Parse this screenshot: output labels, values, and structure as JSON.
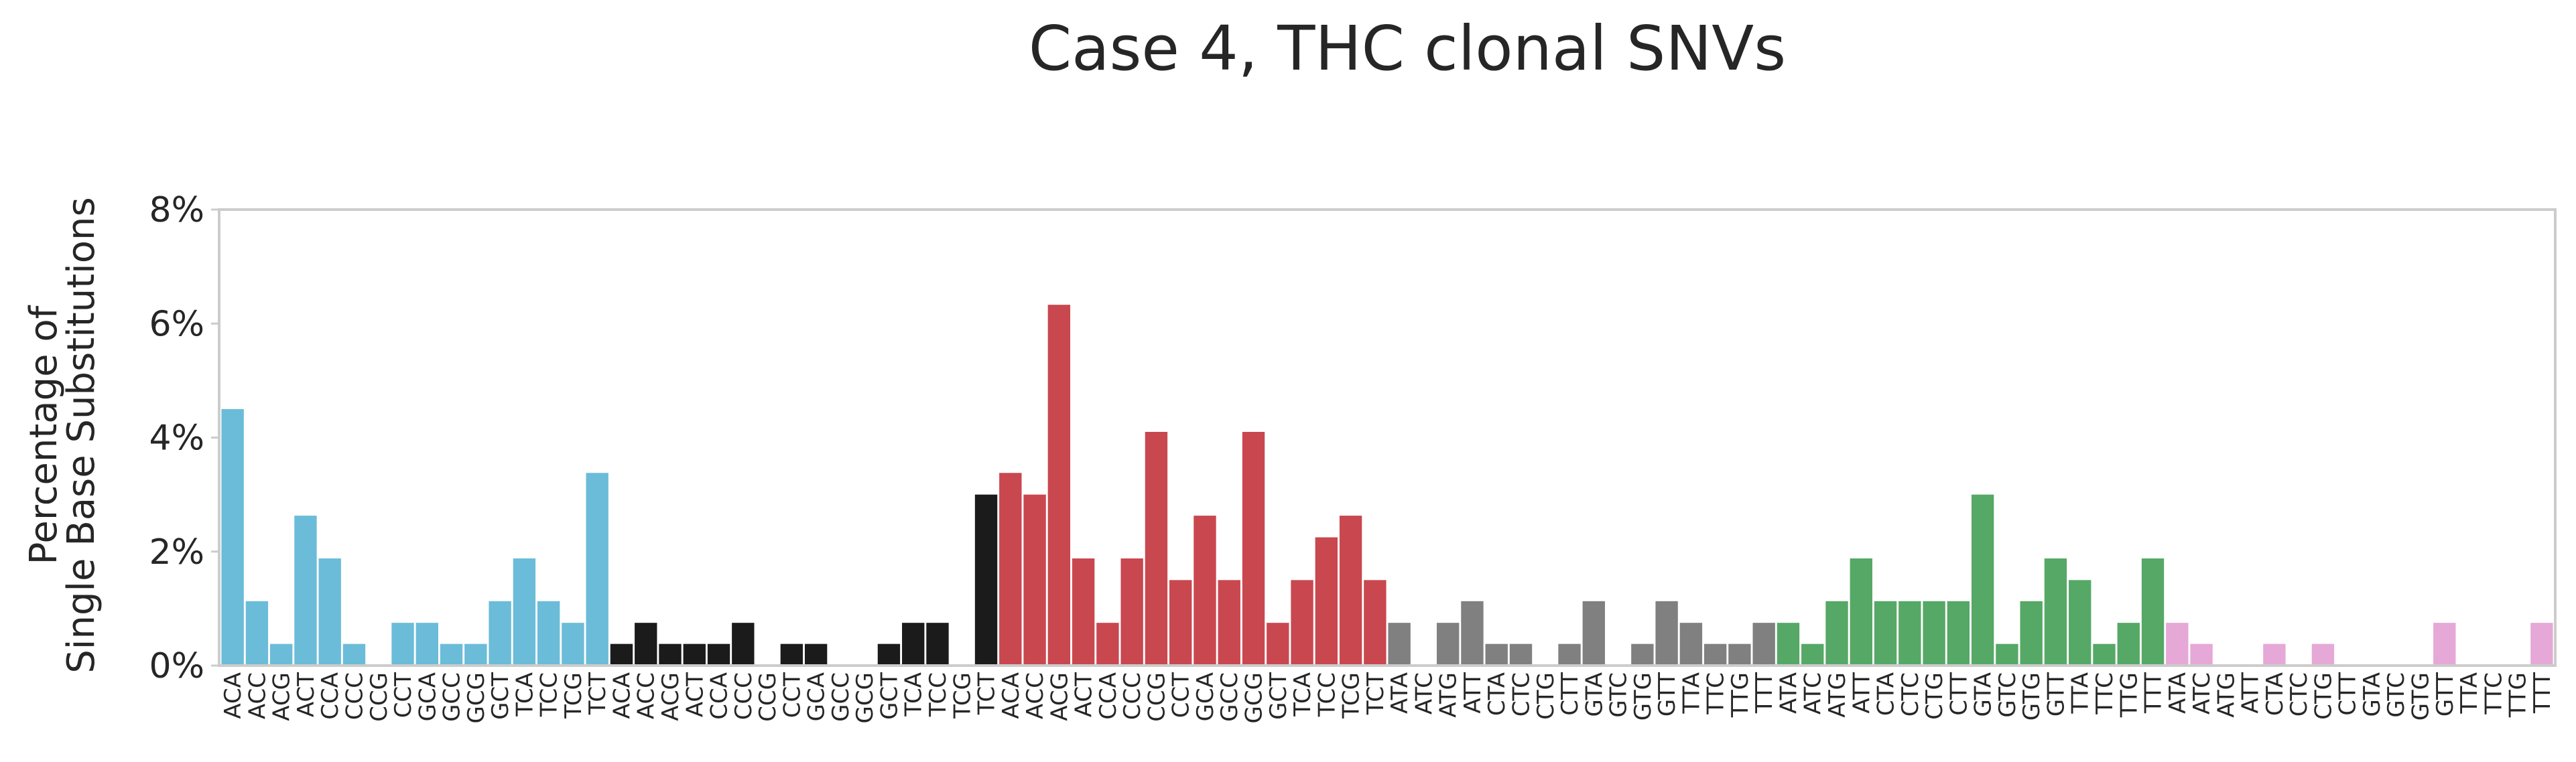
{
  "chart_data": {
    "type": "bar",
    "title": "Case 4, THC clonal SNVs",
    "ylabel_lines": [
      "Percentage of",
      "Single Base Substitutions"
    ],
    "ylim": [
      0,
      8
    ],
    "yticks": [
      0,
      2,
      4,
      6,
      8
    ],
    "ytick_labels": [
      "0%",
      "2%",
      "4%",
      "6%",
      "8%"
    ],
    "grid": false,
    "series": [
      {
        "color": "#6bbcd8",
        "categories": [
          "ACA",
          "ACC",
          "ACG",
          "ACT",
          "CCA",
          "CCC",
          "CCG",
          "CCT",
          "GCA",
          "GCC",
          "GCG",
          "GCT",
          "TCA",
          "TCC",
          "TCG",
          "TCT"
        ],
        "values": [
          4.5,
          1.13,
          0.38,
          2.63,
          1.88,
          0.38,
          0,
          0.75,
          0.75,
          0.38,
          0.38,
          1.13,
          1.88,
          1.13,
          0.75,
          3.38
        ]
      },
      {
        "color": "#1b1b1b",
        "categories": [
          "ACA",
          "ACC",
          "ACG",
          "ACT",
          "CCA",
          "CCC",
          "CCG",
          "CCT",
          "GCA",
          "GCC",
          "GCG",
          "GCT",
          "TCA",
          "TCC",
          "TCG",
          "TCT"
        ],
        "values": [
          0.38,
          0.75,
          0.38,
          0.38,
          0.38,
          0.75,
          0,
          0.38,
          0.38,
          0,
          0,
          0.38,
          0.75,
          0.75,
          0,
          3.0
        ]
      },
      {
        "color": "#c9474f",
        "categories": [
          "ACA",
          "ACC",
          "ACG",
          "ACT",
          "CCA",
          "CCC",
          "CCG",
          "CCT",
          "GCA",
          "GCC",
          "GCG",
          "GCT",
          "TCA",
          "TCC",
          "TCG",
          "TCT"
        ],
        "values": [
          3.38,
          3.0,
          6.33,
          1.88,
          0.75,
          1.88,
          4.1,
          1.5,
          2.63,
          1.5,
          4.1,
          0.75,
          1.5,
          2.25,
          2.63,
          1.5
        ]
      },
      {
        "color": "#808080",
        "categories": [
          "ATA",
          "ATC",
          "ATG",
          "ATT",
          "CTA",
          "CTC",
          "CTG",
          "CTT",
          "GTA",
          "GTC",
          "GTG",
          "GTT",
          "TTA",
          "TTC",
          "TTG",
          "TTT"
        ],
        "values": [
          0.75,
          0,
          0.75,
          1.13,
          0.38,
          0.38,
          0,
          0.38,
          1.13,
          0,
          0.38,
          1.13,
          0.75,
          0.38,
          0.38,
          0.75
        ]
      },
      {
        "color": "#56a866",
        "categories": [
          "ATA",
          "ATC",
          "ATG",
          "ATT",
          "CTA",
          "CTC",
          "CTG",
          "CTT",
          "GTA",
          "GTC",
          "GTG",
          "GTT",
          "TTA",
          "TTC",
          "TTG",
          "TTT"
        ],
        "values": [
          0.75,
          0.38,
          1.13,
          1.88,
          1.13,
          1.13,
          1.13,
          1.13,
          3.0,
          0.38,
          1.13,
          1.88,
          1.5,
          0.38,
          0.75,
          1.88
        ]
      },
      {
        "color": "#e6a8d6",
        "categories": [
          "ATA",
          "ATC",
          "ATG",
          "ATT",
          "CTA",
          "CTC",
          "CTG",
          "CTT",
          "GTA",
          "GTC",
          "GTG",
          "GTT",
          "TTA",
          "TTC",
          "TTG",
          "TTT"
        ],
        "values": [
          0.75,
          0.38,
          0,
          0,
          0.38,
          0,
          0.38,
          0,
          0,
          0,
          0,
          0.75,
          0,
          0,
          0,
          0.75
        ]
      }
    ]
  }
}
